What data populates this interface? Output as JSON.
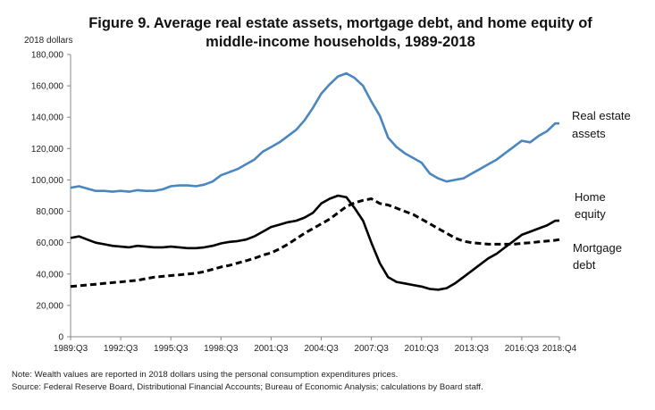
{
  "chart_data": {
    "type": "line",
    "title": "Figure 9.  Average real estate assets, mortgage debt, and home equity of middle-income households, 1989-2018",
    "title_lines": [
      "Figure 9.  Average real estate assets, mortgage debt, and home equity of",
      "middle-income households, 1989-2018"
    ],
    "ylabel": "2018 dollars",
    "xlabel": "",
    "ylim": [
      0,
      180000
    ],
    "y_ticks": [
      0,
      20000,
      40000,
      60000,
      80000,
      100000,
      120000,
      140000,
      160000,
      180000
    ],
    "y_tick_labels": [
      "0",
      "20,000",
      "40,000",
      "60,000",
      "80,000",
      "100,000",
      "120,000",
      "140,000",
      "160,000",
      "180,000"
    ],
    "x_range": [
      1989.5,
      2018.75
    ],
    "x_ticks": [
      1989.5,
      1992.5,
      1995.5,
      1998.5,
      2001.5,
      2004.5,
      2007.5,
      2010.5,
      2013.5,
      2016.5,
      2018.75
    ],
    "x_tick_labels": [
      "1989:Q3",
      "1992:Q3",
      "1995:Q3",
      "1998:Q3",
      "2001:Q3",
      "2004:Q3",
      "2007:Q3",
      "2010:Q3",
      "2013:Q3",
      "2016:Q3",
      "2018:Q4"
    ],
    "grid": false,
    "legend": "none (series labelled directly at right end of lines)",
    "series": [
      {
        "name": "Real estate assets",
        "label_lines": [
          "Real estate",
          "assets"
        ],
        "color": "#4a86c0",
        "dash": "solid",
        "x": [
          1989.5,
          1990,
          1990.5,
          1991,
          1991.5,
          1992,
          1992.5,
          1993,
          1993.5,
          1994,
          1994.5,
          1995,
          1995.5,
          1996,
          1996.5,
          1997,
          1997.5,
          1998,
          1998.5,
          1999,
          1999.5,
          2000,
          2000.5,
          2001,
          2001.5,
          2002,
          2002.5,
          2003,
          2003.5,
          2004,
          2004.5,
          2005,
          2005.5,
          2006,
          2006.5,
          2007,
          2007.5,
          2008,
          2008.5,
          2009,
          2009.5,
          2010,
          2010.5,
          2011,
          2011.5,
          2012,
          2012.5,
          2013,
          2013.5,
          2014,
          2014.5,
          2015,
          2015.5,
          2016,
          2016.5,
          2017,
          2017.5,
          2018,
          2018.5,
          2018.75
        ],
        "values": [
          95000,
          96000,
          94500,
          93000,
          93000,
          92500,
          93000,
          92500,
          93500,
          93000,
          93000,
          94000,
          96000,
          96500,
          96500,
          96000,
          97000,
          99000,
          103000,
          105000,
          107000,
          110000,
          113000,
          118000,
          121000,
          124000,
          128000,
          132000,
          138000,
          146000,
          155000,
          161000,
          166000,
          168000,
          165000,
          160000,
          150000,
          141000,
          127000,
          121000,
          117000,
          114000,
          111000,
          104000,
          101000,
          99000,
          100000,
          101000,
          104000,
          107000,
          110000,
          113000,
          117000,
          121000,
          125000,
          124000,
          128000,
          131000,
          136000,
          136000
        ]
      },
      {
        "name": "Home equity",
        "label_lines": [
          "Home",
          "equity"
        ],
        "color": "#000000",
        "dash": "solid",
        "x": [
          1989.5,
          1990,
          1990.5,
          1991,
          1991.5,
          1992,
          1992.5,
          1993,
          1993.5,
          1994,
          1994.5,
          1995,
          1995.5,
          1996,
          1996.5,
          1997,
          1997.5,
          1998,
          1998.5,
          1999,
          1999.5,
          2000,
          2000.5,
          2001,
          2001.5,
          2002,
          2002.5,
          2003,
          2003.5,
          2004,
          2004.5,
          2005,
          2005.5,
          2006,
          2006.5,
          2007,
          2007.5,
          2008,
          2008.5,
          2009,
          2009.5,
          2010,
          2010.5,
          2011,
          2011.5,
          2012,
          2012.5,
          2013,
          2013.5,
          2014,
          2014.5,
          2015,
          2015.5,
          2016,
          2016.5,
          2017,
          2017.5,
          2018,
          2018.5,
          2018.75
        ],
        "values": [
          63000,
          64000,
          62000,
          60000,
          59000,
          58000,
          57500,
          57000,
          58000,
          57500,
          57000,
          57000,
          57500,
          57000,
          56500,
          56500,
          57000,
          58000,
          59500,
          60500,
          61000,
          62000,
          64000,
          67000,
          70000,
          71500,
          73000,
          74000,
          76000,
          79000,
          85000,
          88000,
          90000,
          89000,
          82000,
          74000,
          60000,
          47000,
          38000,
          35000,
          34000,
          33000,
          32000,
          30500,
          30000,
          31000,
          34000,
          38000,
          42000,
          46000,
          50000,
          53000,
          57000,
          61000,
          65000,
          67000,
          69000,
          71000,
          74000,
          74000
        ]
      },
      {
        "name": "Mortgage debt",
        "label_lines": [
          "Mortgage",
          "debt"
        ],
        "color": "#000000",
        "dash": "dashed",
        "x": [
          1989.5,
          1990,
          1990.5,
          1991,
          1991.5,
          1992,
          1992.5,
          1993,
          1993.5,
          1994,
          1994.5,
          1995,
          1995.5,
          1996,
          1996.5,
          1997,
          1997.5,
          1998,
          1998.5,
          1999,
          1999.5,
          2000,
          2000.5,
          2001,
          2001.5,
          2002,
          2002.5,
          2003,
          2003.5,
          2004,
          2004.5,
          2005,
          2005.5,
          2006,
          2006.5,
          2007,
          2007.5,
          2008,
          2008.5,
          2009,
          2009.5,
          2010,
          2010.5,
          2011,
          2011.5,
          2012,
          2012.5,
          2013,
          2013.5,
          2014,
          2014.5,
          2015,
          2015.5,
          2016,
          2016.5,
          2017,
          2017.5,
          2018,
          2018.5,
          2018.75
        ],
        "values": [
          32000,
          32500,
          33000,
          33500,
          34000,
          34500,
          35000,
          35500,
          36000,
          37000,
          38000,
          38500,
          39000,
          39500,
          40000,
          40500,
          41500,
          43000,
          44500,
          45500,
          47000,
          48500,
          50000,
          52000,
          53500,
          56000,
          59000,
          62500,
          66000,
          69000,
          72000,
          75000,
          79000,
          83000,
          85500,
          87000,
          88000,
          85000,
          84000,
          82000,
          80000,
          78000,
          75000,
          72000,
          69000,
          66000,
          63000,
          61000,
          60000,
          59500,
          59000,
          59000,
          59000,
          59000,
          59500,
          60000,
          60500,
          61000,
          61500,
          62000
        ]
      }
    ]
  },
  "notes": {
    "note": "Note:  Wealth values are reported in 2018 dollars using the personal consumption expenditures prices.",
    "source": "Source:  Federal Reserve Board, Distributional Financial Accounts; Bureau of Economic Analysis; calculations by Board staff."
  }
}
